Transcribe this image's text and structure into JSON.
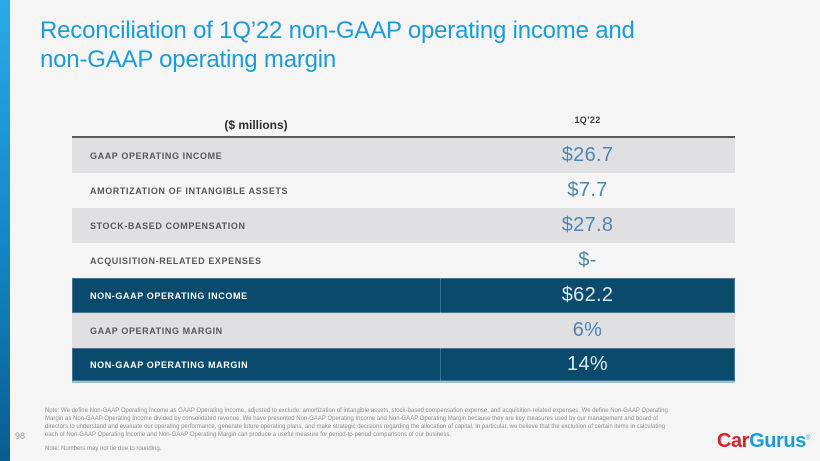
{
  "slide": {
    "title_line1": "Reconciliation of 1Q’22 non-GAAP operating income and",
    "title_line2": "non-GAAP operating margin",
    "page_number": "98"
  },
  "table": {
    "header": {
      "unit_label": "($ millions)",
      "period": "1Q’22"
    },
    "rows": [
      {
        "label": "GAAP OPERATING INCOME",
        "value": "$26.7",
        "style": "gray"
      },
      {
        "label": "AMORTIZATION OF INTANGIBLE ASSETS",
        "value": "$7.7",
        "style": "plain"
      },
      {
        "label": "STOCK-BASED COMPENSATION",
        "value": "$27.8",
        "style": "gray"
      },
      {
        "label": "ACQUISITION-RELATED EXPENSES",
        "value": "$-",
        "style": "plain"
      },
      {
        "label": "NON-GAAP OPERATING INCOME",
        "value": "$62.2",
        "style": "dark"
      },
      {
        "label": "GAAP OPERATING MARGIN",
        "value": "6%",
        "style": "gray"
      },
      {
        "label": "NON-GAAP OPERATING MARGIN",
        "value": "14%",
        "style": "dark"
      }
    ]
  },
  "footnotes": {
    "note1": "Note: We define Non-GAAP Operating Income as GAAP Operating Income, adjusted to exclude: amortization of intangible assets, stock-based compensation expense, and acquisition-related expenses. We define Non-GAAP Operating Margin as Non-GAAP Operating Income divided by consolidated revenue. We have presented Non-GAAP Operating Income and Non-GAAP Operating Margin because they are key measures used by our management and board of directors to understand and evaluate our operating performance, generate future operating plans, and make strategic decisions regarding the allocation of capital. In particular, we believe that the exclusion of certain items in calculating each of Non-GAAP Operating Income and Non-GAAP Operating Margin can produce a useful measure for period-to-period comparisons of our business.",
    "note2": "Note: Numbers may not tie due to rounding."
  },
  "logo": {
    "part1": "Car",
    "part2": "Gurus",
    "mark": "®"
  },
  "colors": {
    "accent_blue": "#1b9cd8",
    "dark_navy_row": "#0a4a6c",
    "gray_row": "#e0e0e2",
    "value_steel_blue": "#4d86b3",
    "logo_red": "#d5232e",
    "page_background": "#f5f5f6"
  }
}
